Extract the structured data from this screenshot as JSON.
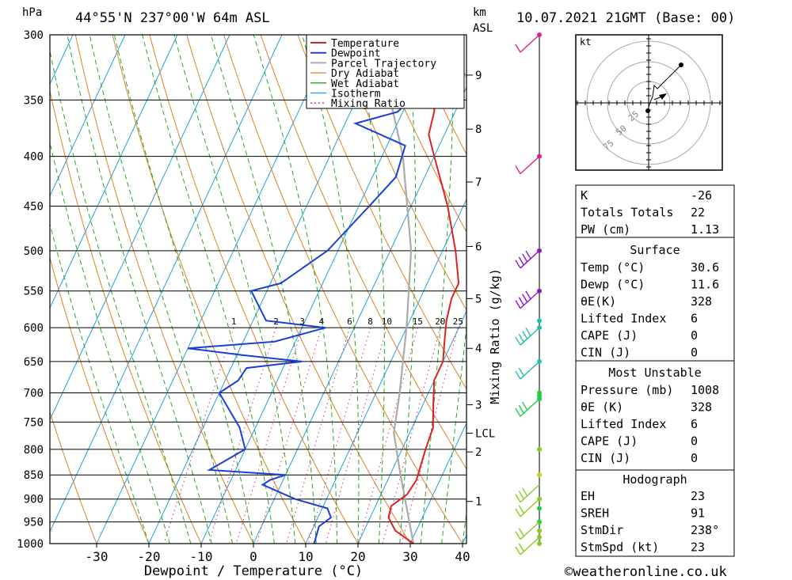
{
  "header": {
    "unit_left": "hPa",
    "location": "44°55'N 237°00'W 64m ASL",
    "unit_km": "km",
    "unit_asl": "ASL",
    "datetime": "10.07.2021 21GMT (Base: 00)"
  },
  "footer": {
    "copyright": "©weatheronline.co.uk"
  },
  "colors": {
    "temperature": "#dd2222",
    "dewpoint": "#1a3fd6",
    "parcel": "#aaaaaa",
    "dry_adiabat": "#e08020",
    "wet_adiabat": "#22aa22",
    "isotherm": "#22a0dd",
    "mixing_ratio": "#dd2288"
  },
  "chart_data": {
    "type": "line",
    "xlabel": "Dewpoint / Temperature (°C)",
    "ylabel": "hPa",
    "x_ticks": [
      -30,
      -20,
      -10,
      0,
      10,
      20,
      30,
      40
    ],
    "pressure_levels": [
      300,
      350,
      400,
      450,
      500,
      550,
      600,
      650,
      700,
      750,
      800,
      850,
      900,
      950,
      1000
    ],
    "km_ticks": [
      {
        "label": "9",
        "p": 330
      },
      {
        "label": "8",
        "p": 375
      },
      {
        "label": "7",
        "p": 425
      },
      {
        "label": "6",
        "p": 495
      },
      {
        "label": "5",
        "p": 560
      },
      {
        "label": "4",
        "p": 630
      },
      {
        "label": "3",
        "p": 720
      },
      {
        "label": "LCL",
        "p": 770
      },
      {
        "label": "2",
        "p": 805
      },
      {
        "label": "1",
        "p": 905
      }
    ],
    "mixing_ratio_label": "Mixing Ratio (g/kg)",
    "mixing_ratio_values": [
      "1",
      "2",
      "3",
      "4",
      "6",
      "8",
      "10",
      "15",
      "20",
      "25"
    ],
    "legend": [
      "Temperature",
      "Dewpoint",
      "Parcel Trajectory",
      "Dry Adiabat",
      "Wet Adiabat",
      "Isotherm",
      "Mixing Ratio"
    ],
    "legend_position": "top-right",
    "series": [
      {
        "name": "Temperature",
        "points": [
          [
            1000,
            30.6
          ],
          [
            970,
            26
          ],
          [
            940,
            23.5
          ],
          [
            915,
            23
          ],
          [
            890,
            25
          ],
          [
            860,
            25.5
          ],
          [
            830,
            25
          ],
          [
            800,
            24.5
          ],
          [
            760,
            24
          ],
          [
            720,
            22
          ],
          [
            680,
            20
          ],
          [
            650,
            20
          ],
          [
            620,
            18.5
          ],
          [
            590,
            17
          ],
          [
            560,
            16
          ],
          [
            540,
            16
          ],
          [
            500,
            12.5
          ],
          [
            450,
            7
          ],
          [
            400,
            0
          ],
          [
            380,
            -3
          ],
          [
            360,
            -4
          ],
          [
            340,
            -6
          ],
          [
            310,
            -10
          ],
          [
            300,
            -12
          ]
        ]
      },
      {
        "name": "Dewpoint",
        "points": [
          [
            1000,
            11.6
          ],
          [
            960,
            11
          ],
          [
            940,
            12.5
          ],
          [
            920,
            11
          ],
          [
            900,
            4
          ],
          [
            870,
            -3.5
          ],
          [
            860,
            -2.5
          ],
          [
            850,
            0
          ],
          [
            840,
            -15
          ],
          [
            800,
            -10
          ],
          [
            760,
            -13
          ],
          [
            700,
            -20
          ],
          [
            680,
            -17.5
          ],
          [
            660,
            -17
          ],
          [
            650,
            -7
          ],
          [
            640,
            -19
          ],
          [
            630,
            -30
          ],
          [
            620,
            -14
          ],
          [
            600,
            -5.5
          ],
          [
            590,
            -17.5
          ],
          [
            550,
            -23
          ],
          [
            540,
            -18
          ],
          [
            500,
            -12
          ],
          [
            450,
            -8
          ],
          [
            420,
            -5.5
          ],
          [
            390,
            -6.5
          ],
          [
            370,
            -18
          ],
          [
            360,
            -11
          ],
          [
            345,
            -9
          ],
          [
            330,
            -17
          ],
          [
            320,
            -9
          ],
          [
            315,
            -17
          ],
          [
            310,
            -9
          ],
          [
            300,
            -11.5
          ]
        ]
      },
      {
        "name": "Parcel Trajectory",
        "points": [
          [
            1000,
            30.6
          ],
          [
            850,
            22
          ],
          [
            770,
            17
          ],
          [
            700,
            14.5
          ],
          [
            600,
            10
          ],
          [
            500,
            4
          ],
          [
            400,
            -6
          ],
          [
            300,
            -22
          ]
        ]
      }
    ],
    "hodograph": {
      "unit": "kt",
      "ring_labels": [
        "25",
        "50",
        "75"
      ]
    },
    "indices": {
      "general": [
        {
          "label": "K",
          "value": "-26"
        },
        {
          "label": "Totals Totals",
          "value": "22"
        },
        {
          "label": "PW (cm)",
          "value": "1.13"
        }
      ],
      "surface_title": "Surface",
      "surface": [
        {
          "label": "Temp (°C)",
          "value": "30.6"
        },
        {
          "label": "Dewp (°C)",
          "value": "11.6"
        },
        {
          "label": "θE(K)",
          "value": "328"
        },
        {
          "label": "Lifted Index",
          "value": "6"
        },
        {
          "label": "CAPE (J)",
          "value": "0"
        },
        {
          "label": "CIN (J)",
          "value": "0"
        }
      ],
      "mu_title": "Most Unstable",
      "mu": [
        {
          "label": "Pressure (mb)",
          "value": "1008"
        },
        {
          "label": "θE (K)",
          "value": "328"
        },
        {
          "label": "Lifted Index",
          "value": "6"
        },
        {
          "label": "CAPE (J)",
          "value": "0"
        },
        {
          "label": "CIN (J)",
          "value": "0"
        }
      ],
      "hodo_title": "Hodograph",
      "hodo": [
        {
          "label": "EH",
          "value": "23"
        },
        {
          "label": "SREH",
          "value": "91"
        },
        {
          "label": "StmDir",
          "value": "238°"
        },
        {
          "label": "StmSpd (kt)",
          "value": "23"
        }
      ]
    }
  }
}
